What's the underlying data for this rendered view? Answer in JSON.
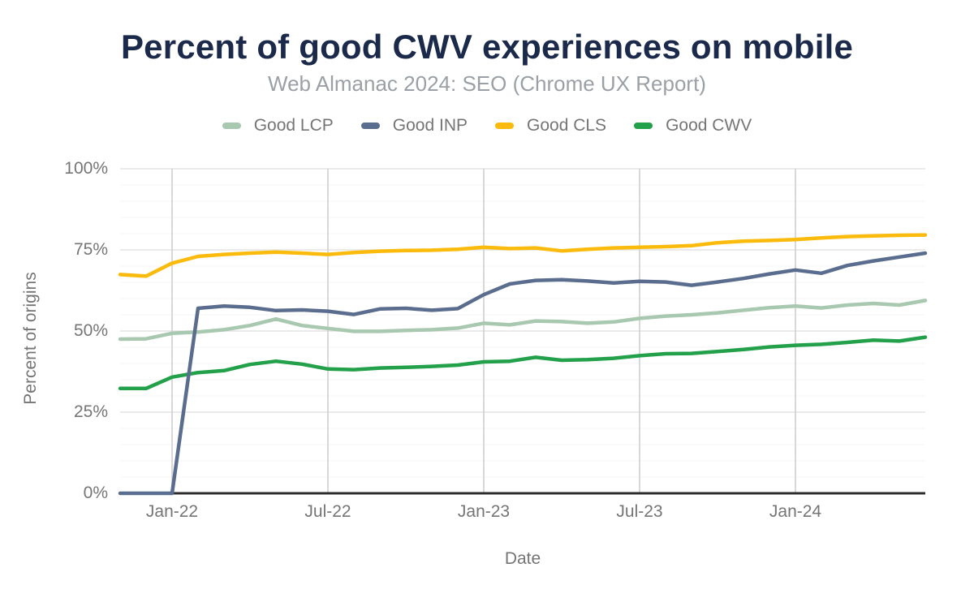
{
  "title": "Percent of good CWV experiences on mobile",
  "subtitle": "Web Almanac 2024: SEO (Chrome UX Report)",
  "colors": {
    "title_text": "#1b2a4a",
    "subtitle_text": "#9aa0a6",
    "axis_text": "#757575",
    "gridline_major": "#e4e4e4",
    "gridline_minor": "#f4f4f4",
    "gridline_vertical": "#cccccc",
    "axis_baseline": "#2d2d2d"
  },
  "chart_data": {
    "type": "line",
    "title": "Percent of good CWV experiences on mobile",
    "subtitle": "Web Almanac 2024: SEO (Chrome UX Report)",
    "xlabel": "Date",
    "ylabel": "Percent of origins",
    "ylim": [
      0,
      100
    ],
    "y_minor_step": 5,
    "grid": true,
    "legend_position": "top",
    "x": [
      "Nov-21",
      "Dec-21",
      "Jan-22",
      "Feb-22",
      "Mar-22",
      "Apr-22",
      "May-22",
      "Jun-22",
      "Jul-22",
      "Aug-22",
      "Sep-22",
      "Oct-22",
      "Nov-22",
      "Dec-22",
      "Jan-23",
      "Feb-23",
      "Mar-23",
      "Apr-23",
      "May-23",
      "Jun-23",
      "Jul-23",
      "Aug-23",
      "Sep-23",
      "Oct-23",
      "Nov-23",
      "Dec-23",
      "Jan-24",
      "Feb-24",
      "Mar-24",
      "Apr-24",
      "May-24",
      "Jun-24"
    ],
    "x_ticks": [
      {
        "index": 2,
        "label": "Jan-22"
      },
      {
        "index": 8,
        "label": "Jul-22"
      },
      {
        "index": 14,
        "label": "Jan-23"
      },
      {
        "index": 20,
        "label": "Jul-23"
      },
      {
        "index": 26,
        "label": "Jan-24"
      }
    ],
    "y_ticks": [
      {
        "value": 0,
        "label": "0%"
      },
      {
        "value": 25,
        "label": "25%"
      },
      {
        "value": 50,
        "label": "50%"
      },
      {
        "value": 75,
        "label": "75%"
      },
      {
        "value": 100,
        "label": "100%"
      }
    ],
    "series": [
      {
        "name": "Good LCP",
        "color": "#a8c8b0",
        "values": [
          47.5,
          47.6,
          49.3,
          49.7,
          50.4,
          51.7,
          53.7,
          51.7,
          50.8,
          49.9,
          49.9,
          50.2,
          50.4,
          50.9,
          52.4,
          51.9,
          53.1,
          52.9,
          52.4,
          52.8,
          53.9,
          54.6,
          55.0,
          55.6,
          56.4,
          57.2,
          57.7,
          57.1,
          58.0,
          58.5,
          58.0,
          59.4
        ]
      },
      {
        "name": "Good INP",
        "color": "#5b6d8e",
        "values": [
          0,
          0,
          0,
          57.0,
          57.7,
          57.3,
          56.3,
          56.5,
          56.1,
          55.1,
          56.8,
          57.0,
          56.4,
          56.9,
          61.2,
          64.5,
          65.6,
          65.8,
          65.4,
          64.8,
          65.3,
          65.1,
          64.1,
          65.1,
          66.2,
          67.6,
          68.8,
          67.8,
          70.2,
          71.6,
          72.8,
          74.0
        ]
      },
      {
        "name": "Good CLS",
        "color": "#fbbb0c",
        "values": [
          67.4,
          66.9,
          70.9,
          73.0,
          73.6,
          74.0,
          74.3,
          74.0,
          73.6,
          74.2,
          74.6,
          74.8,
          74.9,
          75.2,
          75.8,
          75.4,
          75.6,
          74.7,
          75.2,
          75.6,
          75.8,
          76.0,
          76.3,
          77.2,
          77.7,
          77.9,
          78.2,
          78.7,
          79.1,
          79.3,
          79.5,
          79.6
        ]
      },
      {
        "name": "Good CWV",
        "color": "#22a04a",
        "values": [
          32.3,
          32.3,
          35.8,
          37.2,
          37.8,
          39.7,
          40.7,
          39.8,
          38.3,
          38.1,
          38.6,
          38.8,
          39.1,
          39.5,
          40.5,
          40.7,
          41.9,
          41.0,
          41.2,
          41.6,
          42.4,
          43.0,
          43.1,
          43.7,
          44.3,
          45.1,
          45.6,
          45.9,
          46.5,
          47.2,
          46.9,
          48.1
        ]
      }
    ]
  }
}
